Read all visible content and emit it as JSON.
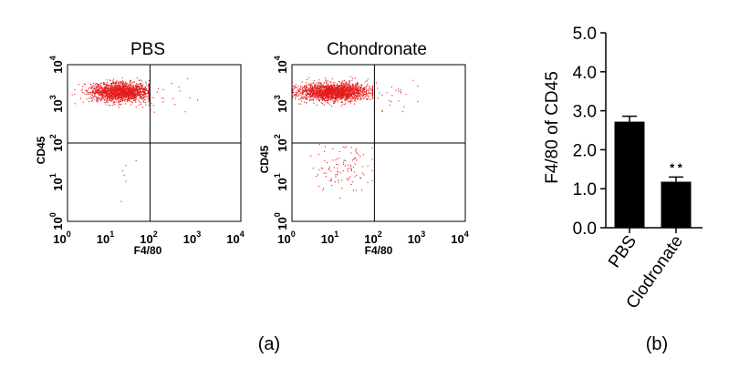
{
  "chart_data": [
    {
      "type": "scatter",
      "title": "PBS",
      "xlabel": "F4/80",
      "ylabel": "CD45",
      "xscale": "log",
      "yscale": "log",
      "xlim": [
        1,
        10000
      ],
      "ylim": [
        1,
        10000
      ],
      "x_ticks": [
        {
          "base": "10",
          "exp": "0"
        },
        {
          "base": "10",
          "exp": "1"
        },
        {
          "base": "10",
          "exp": "2"
        },
        {
          "base": "10",
          "exp": "3"
        },
        {
          "base": "10",
          "exp": "4"
        }
      ],
      "y_ticks": [
        {
          "base": "10",
          "exp": "0"
        },
        {
          "base": "10",
          "exp": "1"
        },
        {
          "base": "10",
          "exp": "2"
        },
        {
          "base": "10",
          "exp": "3"
        },
        {
          "base": "10",
          "exp": "4"
        }
      ],
      "quadrant_gate": {
        "x": 80,
        "y": 100
      },
      "point_color": "#e31a1c",
      "populations": [
        {
          "name": "CD45+ F4/80- main",
          "count": 1700,
          "logx_mean": 1.25,
          "logx_sd": 0.38,
          "logx_range": [
            0.0,
            1.88
          ],
          "logy_mean": 3.3,
          "logy_sd": 0.12
        },
        {
          "name": "CD45+ F4/80+ tail",
          "count": 25,
          "logx_mean": 2.2,
          "logx_sd": 0.4,
          "logx_range": [
            1.9,
            3.0
          ],
          "logy_mean": 3.15,
          "logy_sd": 0.3
        },
        {
          "name": "CD45- sparse",
          "count": 6,
          "logx_mean": 1.4,
          "logx_sd": 0.15,
          "logx_range": [
            1.0,
            1.9
          ],
          "logy_mean": 1.3,
          "logy_sd": 0.3
        }
      ]
    },
    {
      "type": "scatter",
      "title": "Chondronate",
      "xlabel": "F4/80",
      "ylabel": "CD45",
      "xscale": "log",
      "yscale": "log",
      "xlim": [
        1,
        10000
      ],
      "ylim": [
        1,
        10000
      ],
      "x_ticks": [
        {
          "base": "10",
          "exp": "0"
        },
        {
          "base": "10",
          "exp": "1"
        },
        {
          "base": "10",
          "exp": "2"
        },
        {
          "base": "10",
          "exp": "3"
        },
        {
          "base": "10",
          "exp": "4"
        }
      ],
      "y_ticks": [
        {
          "base": "10",
          "exp": "0"
        },
        {
          "base": "10",
          "exp": "1"
        },
        {
          "base": "10",
          "exp": "2"
        },
        {
          "base": "10",
          "exp": "3"
        },
        {
          "base": "10",
          "exp": "4"
        }
      ],
      "quadrant_gate": {
        "x": 80,
        "y": 100
      },
      "point_color": "#e31a1c",
      "populations": [
        {
          "name": "CD45+ F4/80- main",
          "count": 1900,
          "logx_mean": 0.95,
          "logx_sd": 0.42,
          "logx_range": [
            0.0,
            1.86
          ],
          "logy_mean": 3.3,
          "logy_sd": 0.11
        },
        {
          "name": "CD45+ F4/80+ tail",
          "count": 30,
          "logx_mean": 2.2,
          "logx_sd": 0.35,
          "logx_range": [
            1.9,
            2.9
          ],
          "logy_mean": 3.25,
          "logy_sd": 0.2
        },
        {
          "name": "CD45- cluster",
          "count": 110,
          "logx_mean": 1.15,
          "logx_sd": 0.35,
          "logx_range": [
            0.1,
            1.85
          ],
          "logy_mean": 1.35,
          "logy_sd": 0.32
        }
      ]
    },
    {
      "type": "bar",
      "categories": [
        "PBS",
        "Clodronate"
      ],
      "values": [
        2.72,
        1.18
      ],
      "errors": [
        0.14,
        0.12
      ],
      "bar_color": "#000000",
      "annotations": [
        {
          "category": "Clodronate",
          "text": "* *"
        }
      ],
      "title": "",
      "xlabel": "",
      "ylabel": "F4/80 of CD45",
      "ylim": [
        0.0,
        5.0
      ],
      "y_ticks": [
        "0.0",
        "1.0",
        "2.0",
        "3.0",
        "4.0",
        "5.0"
      ]
    }
  ],
  "panel_labels": [
    "(a)",
    "(b)"
  ]
}
